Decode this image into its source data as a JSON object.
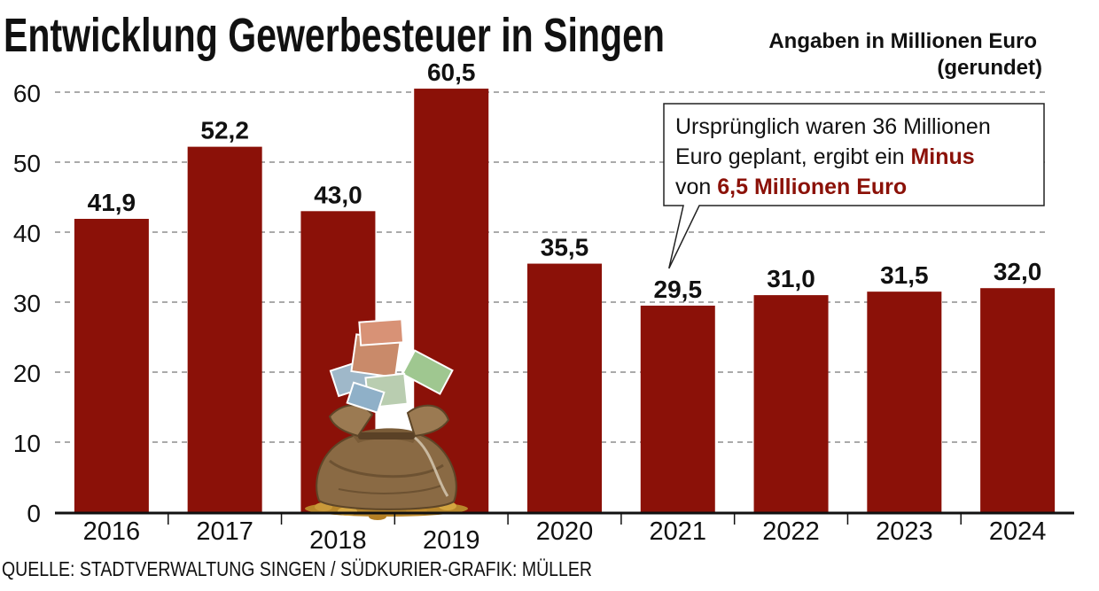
{
  "chart_data": {
    "type": "bar",
    "title": "Entwicklung Gewerbesteuer in Singen",
    "subtitle_lines": [
      "Angaben in Millionen Euro",
      "(gerundet)"
    ],
    "categories": [
      "2016",
      "2017",
      "2018",
      "2019",
      "2020",
      "2021",
      "2022",
      "2023",
      "2024"
    ],
    "values": [
      41.9,
      52.2,
      43.0,
      60.5,
      35.5,
      29.5,
      31.0,
      31.5,
      32.0
    ],
    "value_labels": [
      "41,9",
      "52,2",
      "43,0",
      "60,5",
      "35,5",
      "29,5",
      "31,0",
      "31,5",
      "32,0"
    ],
    "yticks": [
      "0",
      "10",
      "20",
      "30",
      "40",
      "50",
      "60"
    ],
    "ylim": [
      0,
      60
    ],
    "grid": "dashed horizontal",
    "bar_color": "#8b1108",
    "source": "QUELLE: STADTVERWALTUNG SINGEN / SÜDKURIER-GRAFIK: MÜLLER",
    "callout": {
      "category": "2021",
      "line1": "Ursprünglich waren 36 Millionen",
      "line2_plain": "Euro geplant, ergibt ein ",
      "line2_strong": "Minus",
      "line3_plain": "von ",
      "line3_strong": "6,5 Millionen Euro",
      "highlight_color": "#8b1108"
    },
    "illustration": "money-bag-icon"
  }
}
